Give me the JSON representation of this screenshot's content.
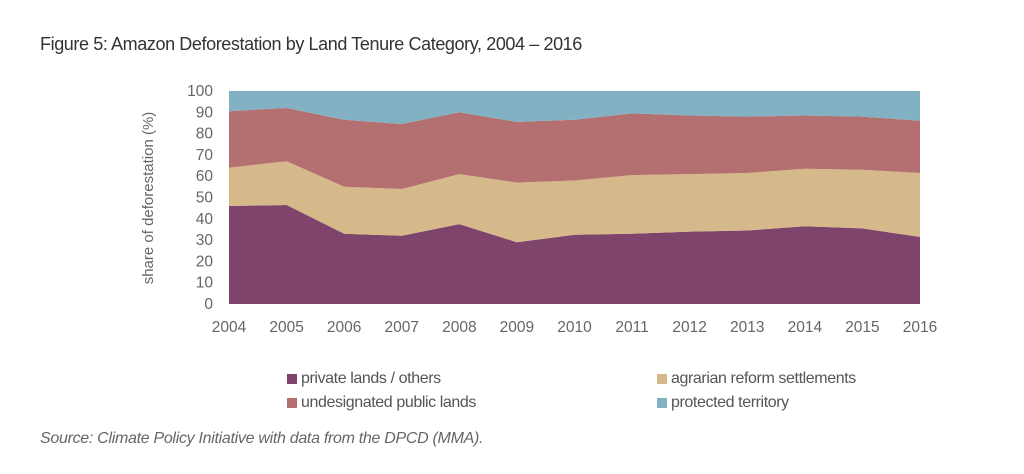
{
  "chart_data": {
    "type": "area",
    "stacked": true,
    "title": "Figure 5: Amazon Deforestation by Land Tenure Category, 2004 – 2016",
    "xlabel": "",
    "ylabel": "share of deforestation (%)",
    "ylim": [
      0,
      100
    ],
    "yticks": [
      0,
      10,
      20,
      30,
      40,
      50,
      60,
      70,
      80,
      90,
      100
    ],
    "categories": [
      "2004",
      "2005",
      "2006",
      "2007",
      "2008",
      "2009",
      "2010",
      "2011",
      "2012",
      "2013",
      "2014",
      "2015",
      "2016"
    ],
    "grid": false,
    "legend_position": "bottom",
    "series": [
      {
        "name": "private lands / others",
        "color": "#7f446b",
        "values": [
          46,
          46.5,
          33,
          32,
          37.5,
          29,
          32.5,
          33,
          34,
          34.5,
          36.5,
          35.5,
          31.5
        ]
      },
      {
        "name": "agrarian reform settlements",
        "color": "#d6b98a",
        "values": [
          18,
          20.5,
          22,
          22,
          23.5,
          28,
          25.5,
          27.5,
          27,
          27,
          27,
          27.5,
          30
        ]
      },
      {
        "name": "undesignated public lands",
        "color": "#b47070",
        "values": [
          26.5,
          25,
          31.5,
          30.5,
          29,
          28.5,
          28.5,
          29,
          27.5,
          26.5,
          25,
          25,
          24.5
        ]
      },
      {
        "name": "protected territory",
        "color": "#82b1c4",
        "values": [
          9.5,
          8,
          13.5,
          15.5,
          10,
          14.5,
          13.5,
          10.5,
          11.5,
          12,
          11.5,
          12,
          14
        ]
      }
    ],
    "source": "Source: Climate Policy Initiative with data from the DPCD (MMA)."
  }
}
